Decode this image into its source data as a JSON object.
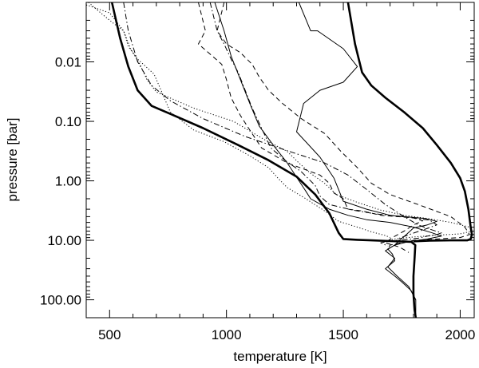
{
  "chart_data": {
    "type": "line",
    "title": "",
    "xlabel": "temperature [K]",
    "ylabel": "pressure [bar]",
    "xlim": [
      400,
      2060
    ],
    "ylim": [
      0.001,
      200
    ],
    "yscale": "log",
    "y_reversed": true,
    "grid": false,
    "legend": "none",
    "x_ticks": [
      500,
      1000,
      1500,
      2000
    ],
    "x_tick_labels": [
      "500",
      "1000",
      "1500",
      "2000"
    ],
    "y_ticks": [
      0.01,
      0.1,
      1,
      10,
      100
    ],
    "y_tick_labels": [
      "0.01",
      "0.10",
      "1.00",
      "10.00",
      "100.00"
    ],
    "series": [
      {
        "style": "thick-solid",
        "points": [
          [
            510,
            0.001
          ],
          [
            545,
            0.004
          ],
          [
            580,
            0.012
          ],
          [
            620,
            0.03
          ],
          [
            680,
            0.055
          ],
          [
            760,
            0.075
          ],
          [
            900,
            0.13
          ],
          [
            1050,
            0.25
          ],
          [
            1180,
            0.45
          ],
          [
            1300,
            0.85
          ],
          [
            1380,
            1.7
          ],
          [
            1440,
            3.5
          ],
          [
            1480,
            7.5
          ],
          [
            1500,
            9.5
          ],
          [
            1560,
            9.8
          ],
          [
            1620,
            10
          ],
          [
            1700,
            10.3
          ],
          [
            1790,
            10.6
          ],
          [
            1808,
            12
          ],
          [
            1805,
            20
          ],
          [
            1800,
            40
          ],
          [
            1800,
            80
          ],
          [
            1805,
            150
          ],
          [
            1810,
            200
          ]
        ]
      },
      {
        "style": "thick-solid",
        "points": [
          [
            1520,
            0.001
          ],
          [
            1550,
            0.005
          ],
          [
            1580,
            0.015
          ],
          [
            1620,
            0.025
          ],
          [
            1680,
            0.04
          ],
          [
            1760,
            0.07
          ],
          [
            1840,
            0.13
          ],
          [
            1900,
            0.25
          ],
          [
            1960,
            0.5
          ],
          [
            2000,
            0.9
          ],
          [
            2020,
            1.5
          ],
          [
            2035,
            3
          ],
          [
            2045,
            6
          ],
          [
            2050,
            8
          ],
          [
            2045,
            9.5
          ],
          [
            2030,
            10
          ],
          [
            1960,
            10
          ],
          [
            1870,
            10.1
          ],
          [
            1800,
            10.4
          ]
        ]
      },
      {
        "style": "thin-solid",
        "points": [
          [
            1310,
            0.001
          ],
          [
            1360,
            0.003
          ],
          [
            1390,
            0.003
          ],
          [
            1500,
            0.006
          ],
          [
            1560,
            0.012
          ],
          [
            1500,
            0.022
          ],
          [
            1400,
            0.03
          ],
          [
            1330,
            0.05
          ],
          [
            1300,
            0.15
          ],
          [
            1400,
            0.4
          ],
          [
            1460,
            0.9
          ],
          [
            1500,
            2.2
          ],
          [
            1600,
            3
          ],
          [
            1700,
            3.8
          ],
          [
            1850,
            4.3
          ],
          [
            1900,
            4.8
          ],
          [
            1860,
            5.5
          ],
          [
            1800,
            6.2
          ],
          [
            1770,
            8
          ],
          [
            1740,
            10
          ],
          [
            1720,
            12
          ],
          [
            1690,
            14
          ],
          [
            1710,
            17
          ],
          [
            1720,
            22
          ],
          [
            1680,
            30
          ],
          [
            1720,
            40
          ],
          [
            1750,
            50
          ],
          [
            1790,
            70
          ],
          [
            1810,
            100
          ]
        ]
      },
      {
        "style": "thin-solid",
        "points": [
          [
            950,
            0.001
          ],
          [
            990,
            0.003
          ],
          [
            1020,
            0.008
          ],
          [
            1060,
            0.02
          ],
          [
            1100,
            0.05
          ],
          [
            1140,
            0.12
          ],
          [
            1200,
            0.25
          ],
          [
            1260,
            0.5
          ],
          [
            1340,
            1.5
          ],
          [
            1360,
            2
          ],
          [
            1440,
            3
          ],
          [
            1520,
            3.8
          ],
          [
            1600,
            4.5
          ],
          [
            1700,
            5
          ],
          [
            1800,
            6
          ],
          [
            1880,
            7.5
          ],
          [
            1920,
            8.5
          ],
          [
            1860,
            9.5
          ],
          [
            1780,
            10.5
          ],
          [
            1720,
            12
          ],
          [
            1680,
            15
          ],
          [
            1720,
            20
          ],
          [
            1690,
            28
          ],
          [
            1730,
            40
          ],
          [
            1780,
            60
          ],
          [
            1810,
            100
          ],
          [
            1810,
            180
          ]
        ]
      },
      {
        "style": "dash",
        "points": [
          [
            990,
            0.001
          ],
          [
            960,
            0.003
          ],
          [
            1000,
            0.005
          ],
          [
            1060,
            0.007
          ],
          [
            1110,
            0.011
          ],
          [
            1140,
            0.018
          ],
          [
            1180,
            0.03
          ],
          [
            1240,
            0.05
          ],
          [
            1320,
            0.09
          ],
          [
            1420,
            0.16
          ],
          [
            1490,
            0.32
          ],
          [
            1560,
            0.6
          ],
          [
            1620,
            1.1
          ],
          [
            1700,
            1.7
          ],
          [
            1820,
            2.5
          ],
          [
            1960,
            4
          ],
          [
            2020,
            6
          ],
          [
            2040,
            8
          ],
          [
            2000,
            9
          ],
          [
            1900,
            9.5
          ],
          [
            1800,
            10
          ],
          [
            1750,
            11
          ],
          [
            1700,
            12
          ],
          [
            1690,
            14
          ]
        ]
      },
      {
        "style": "dash",
        "points": [
          [
            880,
            0.001
          ],
          [
            910,
            0.003
          ],
          [
            880,
            0.005
          ],
          [
            940,
            0.008
          ],
          [
            980,
            0.011
          ],
          [
            1000,
            0.02
          ],
          [
            1020,
            0.04
          ],
          [
            1060,
            0.08
          ],
          [
            1100,
            0.14
          ],
          [
            1150,
            0.28
          ],
          [
            1260,
            0.5
          ],
          [
            1400,
            0.8
          ],
          [
            1440,
            1.1
          ],
          [
            1460,
            1.6
          ],
          [
            1500,
            2
          ],
          [
            1520,
            3
          ],
          [
            1580,
            3.2
          ],
          [
            1660,
            3.8
          ],
          [
            1800,
            4.2
          ],
          [
            1840,
            4.7
          ],
          [
            1800,
            5.5
          ],
          [
            1760,
            7
          ],
          [
            1710,
            9
          ],
          [
            1680,
            11
          ],
          [
            1740,
            13
          ],
          [
            1780,
            16
          ]
        ]
      },
      {
        "style": "dashdot",
        "points": [
          [
            560,
            0.001
          ],
          [
            580,
            0.003
          ],
          [
            620,
            0.01
          ],
          [
            680,
            0.025
          ],
          [
            760,
            0.045
          ],
          [
            900,
            0.09
          ],
          [
            1080,
            0.18
          ],
          [
            1280,
            0.33
          ],
          [
            1420,
            0.5
          ],
          [
            1520,
            0.8
          ],
          [
            1600,
            1.4
          ],
          [
            1680,
            2.5
          ],
          [
            1760,
            4
          ],
          [
            1820,
            5.5
          ],
          [
            1870,
            6.5
          ],
          [
            1920,
            7.5
          ],
          [
            1900,
            8
          ],
          [
            1860,
            8.5
          ],
          [
            1820,
            9.2
          ],
          [
            1760,
            9.8
          ],
          [
            1700,
            10.3
          ],
          [
            1660,
            11
          ],
          [
            1690,
            12.5
          ]
        ]
      },
      {
        "style": "dashdot",
        "points": [
          [
            930,
            0.001
          ],
          [
            960,
            0.003
          ],
          [
            990,
            0.005
          ],
          [
            1020,
            0.009
          ],
          [
            1050,
            0.015
          ],
          [
            1080,
            0.03
          ],
          [
            1110,
            0.06
          ],
          [
            1150,
            0.13
          ],
          [
            1190,
            0.28
          ],
          [
            1250,
            0.45
          ],
          [
            1320,
            0.7
          ],
          [
            1380,
            1.2
          ],
          [
            1400,
            1.8
          ],
          [
            1440,
            2.5
          ],
          [
            1540,
            3.1
          ],
          [
            1640,
            3.6
          ],
          [
            1780,
            4.1
          ],
          [
            1870,
            4.6
          ],
          [
            1900,
            5.5
          ],
          [
            1850,
            6.5
          ],
          [
            1790,
            7.8
          ],
          [
            1740,
            9.2
          ],
          [
            1720,
            10.5
          ]
        ]
      },
      {
        "style": "dot",
        "points": [
          [
            400,
            0.0011
          ],
          [
            500,
            0.0015
          ],
          [
            560,
            0.003
          ],
          [
            590,
            0.006
          ],
          [
            630,
            0.011
          ],
          [
            660,
            0.02
          ],
          [
            700,
            0.032
          ],
          [
            860,
            0.06
          ],
          [
            1030,
            0.1
          ],
          [
            1160,
            0.2
          ],
          [
            1260,
            0.32
          ],
          [
            1310,
            0.5
          ],
          [
            1360,
            0.75
          ],
          [
            1420,
            1.1
          ],
          [
            1470,
            1.7
          ],
          [
            1560,
            2.3
          ],
          [
            1660,
            3.1
          ],
          [
            1760,
            3.8
          ],
          [
            1860,
            4.3
          ],
          [
            1960,
            5
          ],
          [
            2040,
            6
          ],
          [
            2050,
            7
          ],
          [
            2000,
            7.8
          ],
          [
            1900,
            8.2
          ],
          [
            1800,
            8.8
          ],
          [
            1720,
            9.5
          ],
          [
            1680,
            10.2
          ]
        ]
      },
      {
        "style": "dot",
        "points": [
          [
            410,
            0.001
          ],
          [
            470,
            0.0016
          ],
          [
            520,
            0.0023
          ],
          [
            560,
            0.003
          ],
          [
            580,
            0.0055
          ],
          [
            620,
            0.009
          ],
          [
            690,
            0.016
          ],
          [
            720,
            0.03
          ],
          [
            760,
            0.07
          ],
          [
            860,
            0.14
          ],
          [
            990,
            0.22
          ],
          [
            1100,
            0.38
          ],
          [
            1180,
            0.6
          ],
          [
            1220,
            0.9
          ],
          [
            1260,
            1.3
          ],
          [
            1340,
            2
          ],
          [
            1420,
            3.2
          ],
          [
            1480,
            4.8
          ],
          [
            1560,
            6
          ],
          [
            1620,
            7.2
          ],
          [
            1680,
            8.3
          ],
          [
            1700,
            9
          ]
        ]
      }
    ]
  }
}
